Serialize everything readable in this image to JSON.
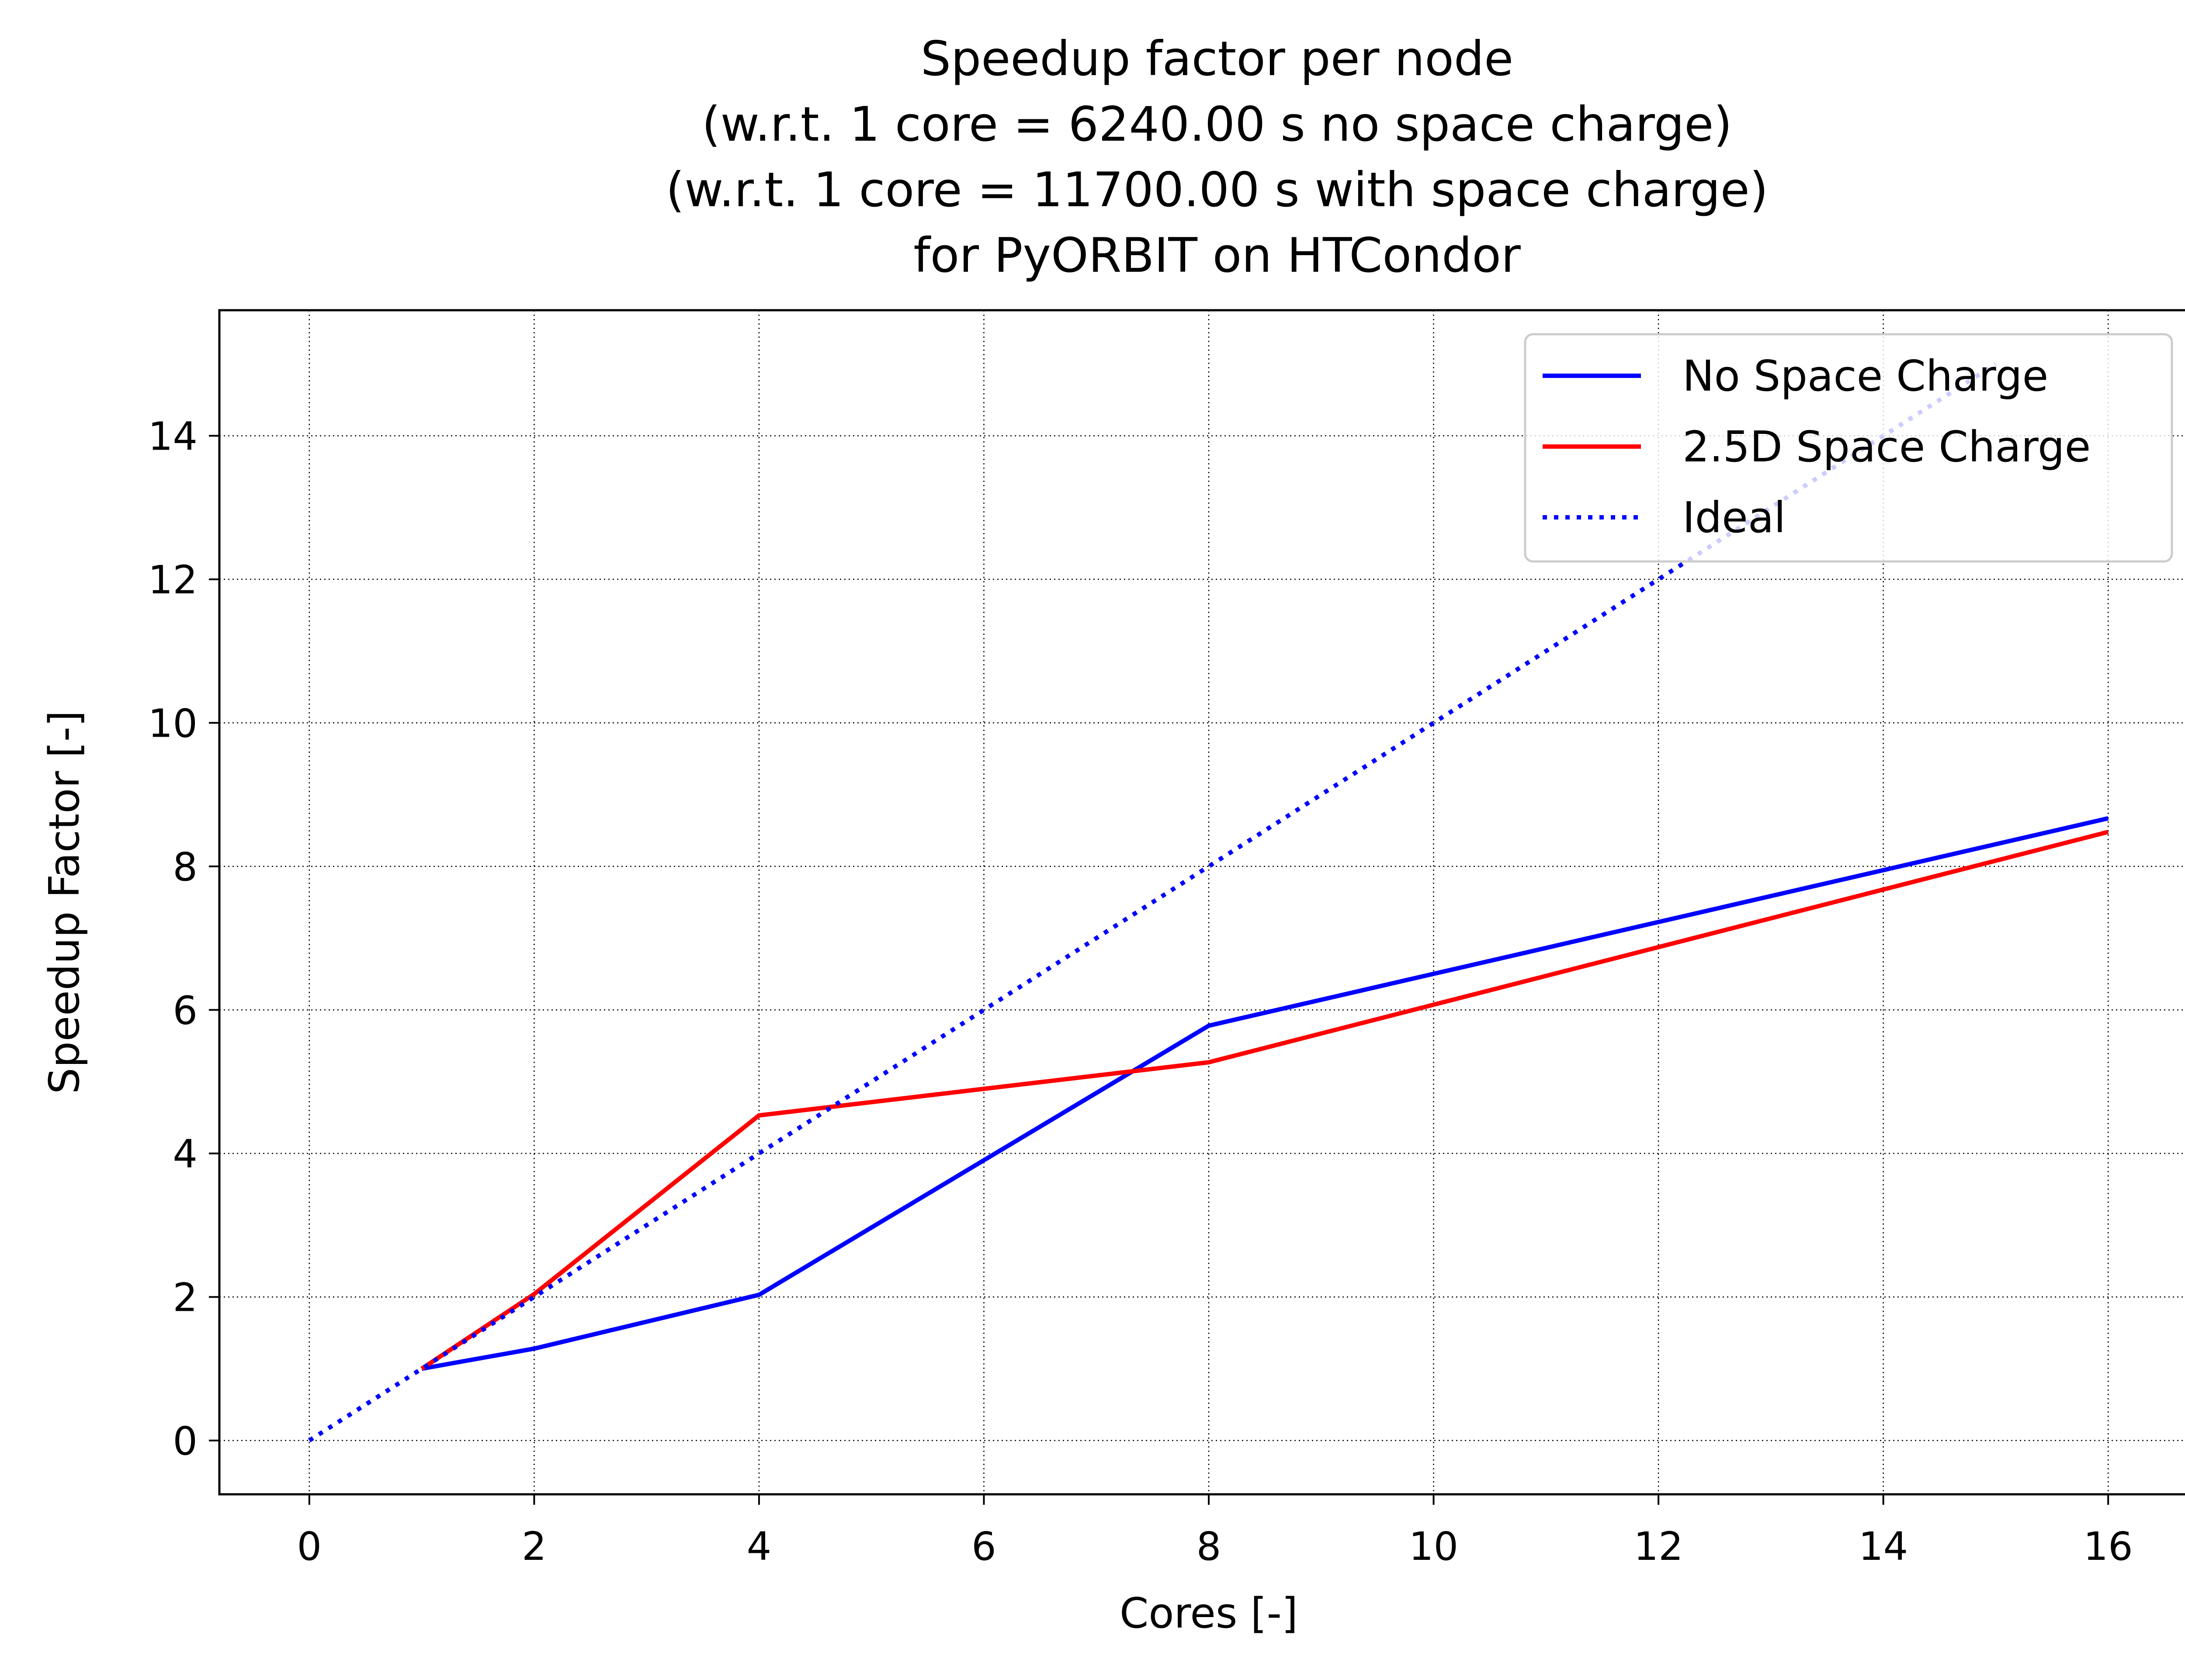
{
  "chart_data": {
    "type": "line",
    "title_lines": [
      "Speedup factor per node",
      "(w.r.t. 1 core = 6240.00 s no space charge)",
      "(w.r.t. 1 core = 11700.00 s with space charge)",
      "for PyORBIT on HTCondor"
    ],
    "xlabel": "Cores [-]",
    "ylabel": "Speedup Factor [-]",
    "xlim": [
      -0.8,
      16.8
    ],
    "ylim": [
      -0.75,
      15.75
    ],
    "xticks": [
      0,
      2,
      4,
      6,
      8,
      10,
      12,
      14,
      16
    ],
    "yticks": [
      0,
      2,
      4,
      6,
      8,
      10,
      12,
      14
    ],
    "grid": true,
    "legend_position": "top-right",
    "series": [
      {
        "name": "No Space Charge",
        "color": "#0000ff",
        "style": "solid",
        "x": [
          1,
          2,
          4,
          8,
          16
        ],
        "y": [
          1.0,
          1.28,
          2.03,
          5.78,
          8.67
        ]
      },
      {
        "name": "2.5D Space Charge",
        "color": "#ff0000",
        "style": "solid",
        "x": [
          1,
          2,
          4,
          8,
          16
        ],
        "y": [
          1.0,
          2.04,
          4.53,
          5.27,
          8.48
        ]
      },
      {
        "name": "Ideal",
        "color": "#0000ff",
        "style": "dotted",
        "x": [
          0,
          15
        ],
        "y": [
          0,
          15
        ]
      }
    ]
  }
}
